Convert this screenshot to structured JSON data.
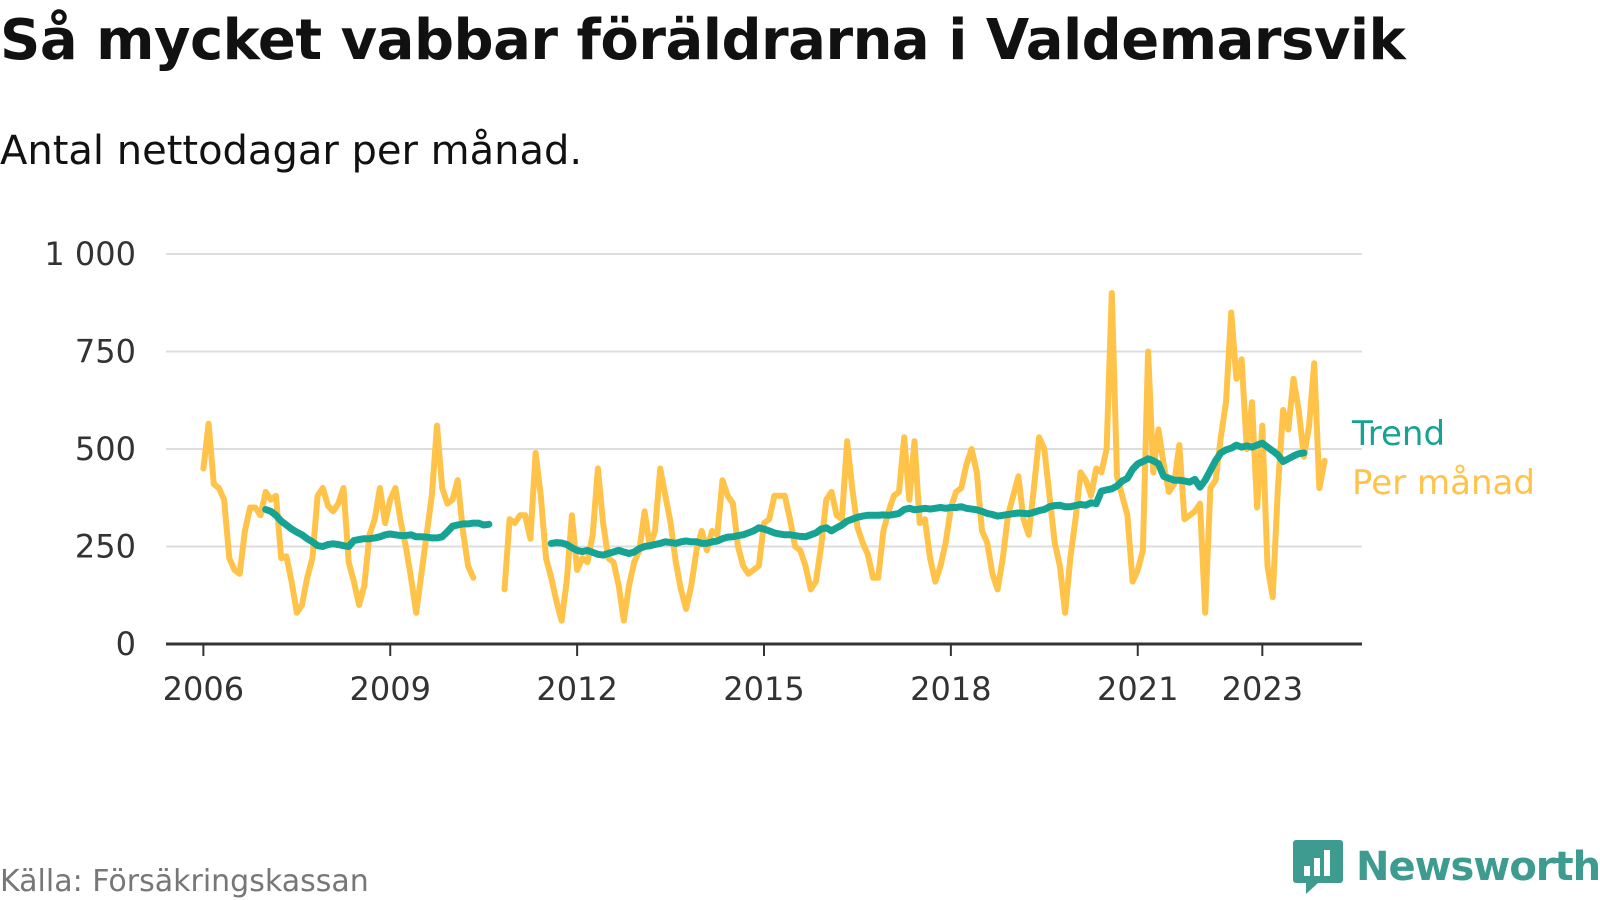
{
  "title": "Så mycket vabbar föräldrarna i Valdemarsvik",
  "subtitle": "Antal nettodagar per månad.",
  "source": "Källa: Försäkringskassan",
  "brand": "Newsworthy",
  "colors": {
    "trend": "#17a393",
    "monthly": "#ffc34a",
    "grid": "#dddddd",
    "axis": "#333333"
  },
  "chart_data": {
    "type": "line",
    "title": "Så mycket vabbar föräldrarna i Valdemarsvik",
    "subtitle": "Antal nettodagar per månad.",
    "x_axis": {
      "type": "time",
      "range": [
        2005.4,
        2024.6
      ],
      "ticks": [
        2006,
        2009,
        2012,
        2015,
        2018,
        2021,
        2023
      ],
      "tick_labels": [
        "2006",
        "2009",
        "2012",
        "2015",
        "2018",
        "2021",
        "2023"
      ]
    },
    "y_axis": {
      "range": [
        0,
        1000
      ],
      "ticks": [
        0,
        250,
        500,
        750,
        1000
      ],
      "tick_labels": [
        "0",
        "250",
        "500",
        "750",
        "1 000"
      ]
    },
    "grid": "horizontal",
    "legend": "direct labels at right end of lines",
    "series": [
      {
        "name": "Per månad",
        "segments": [
          {
            "start": "2006-01",
            "values": [
              450,
              565,
              410,
              400,
              370,
              220,
              190,
              180,
              290,
              350,
              350,
              330,
              390,
              370,
              380,
              220,
              225,
              160,
              80,
              100,
              170,
              220,
              380,
              400,
              355,
              340,
              360,
              400,
              210,
              160,
              100,
              150,
              280,
              320,
              400,
              310,
              370,
              400,
              315,
              250,
              170,
              80,
              180,
              280,
              380,
              560,
              400,
              360,
              370,
              420,
              290,
              200,
              170
            ]
          },
          {
            "start": "2010-11",
            "values": [
              140,
              320,
              310,
              330,
              330,
              270,
              490,
              380,
              220,
              170,
              110,
              60,
              160,
              330,
              190,
              220,
              210,
              280,
              450,
              310,
              220,
              210,
              150,
              60,
              150,
              210,
              240,
              340,
              250,
              290,
              450,
              380,
              310,
              210,
              140,
              90,
              150,
              240,
              290,
              240,
              290,
              280,
              420,
              380,
              360,
              250,
              200,
              180,
              190,
              200,
              310,
              320,
              380,
              380,
              380,
              320,
              250,
              240,
              200,
              140,
              160,
              250,
              370,
              390,
              330,
              320,
              520,
              400,
              300,
              260,
              230,
              170,
              170,
              290,
              340,
              380,
              390,
              530,
              370,
              520,
              310,
              320,
              220,
              160,
              200,
              260,
              350,
              390,
              400,
              460,
              500,
              440,
              290,
              260,
              180,
              140,
              220,
              330,
              380,
              430,
              320,
              280,
              400,
              530,
              500,
              380,
              260,
              200,
              80,
              220,
              320,
              440,
              420,
              380,
              450,
              440,
              500,
              900,
              430,
              380,
              330,
              160,
              190,
              240,
              750,
              440,
              550,
              460,
              390,
              410,
              510,
              320,
              330,
              340,
              360,
              80,
              400,
              420,
              530,
              620,
              850,
              680,
              730,
              500,
              620,
              350,
              560,
              200,
              120,
              400,
              600,
              550,
              680,
              600,
              480,
              560,
              720,
              400,
              470
            ]
          }
        ]
      },
      {
        "name": "Trend",
        "segments": [
          {
            "start": "2007-01",
            "values": [
              345,
              340,
              330,
              315,
              305,
              295,
              287,
              280,
              270,
              262,
              252,
              250,
              255,
              257,
              255,
              252,
              250,
              265,
              268,
              270,
              270,
              272,
              275,
              280,
              282,
              280,
              278,
              278,
              280,
              275,
              275,
              274,
              272,
              272,
              275,
              288,
              302,
              305,
              308,
              308,
              310,
              310,
              305,
              307
            ]
          },
          {
            "start": "2011-08",
            "values": [
              258,
              260,
              259,
              255,
              247,
              240,
              237,
              240,
              235,
              230,
              228,
              232,
              236,
              240,
              236,
              232,
              236,
              245,
              250,
              252,
              255,
              258,
              262,
              260,
              258,
              262,
              264,
              262,
              262,
              258,
              258,
              262,
              264,
              270,
              274,
              275,
              278,
              280,
              285,
              290,
              298,
              295,
              290,
              285,
              282,
              280,
              280,
              278,
              276,
              275,
              280,
              285,
              295,
              298,
              290,
              298,
              305,
              315,
              320,
              325,
              328,
              330,
              330,
              330,
              331,
              330,
              332,
              335,
              345,
              348,
              344,
              346,
              348,
              346,
              348,
              350,
              348,
              350,
              350,
              352,
              348,
              346,
              344,
              340,
              335,
              332,
              328,
              330,
              332,
              334,
              336,
              335,
              334,
              338,
              342,
              345,
              352,
              355,
              356,
              352,
              352,
              355,
              358,
              356,
              362,
              360,
              392,
              395,
              398,
              405,
              418,
              425,
              448,
              462,
              468,
              475,
              470,
              462,
              430,
              425,
              420,
              420,
              418,
              415,
              422,
              402,
              420,
              445,
              470,
              490,
              498,
              502,
              510,
              505,
              508,
              505,
              510,
              515,
              505,
              495,
              485,
              468,
              475,
              482,
              488,
              490
            ]
          }
        ]
      }
    ]
  }
}
